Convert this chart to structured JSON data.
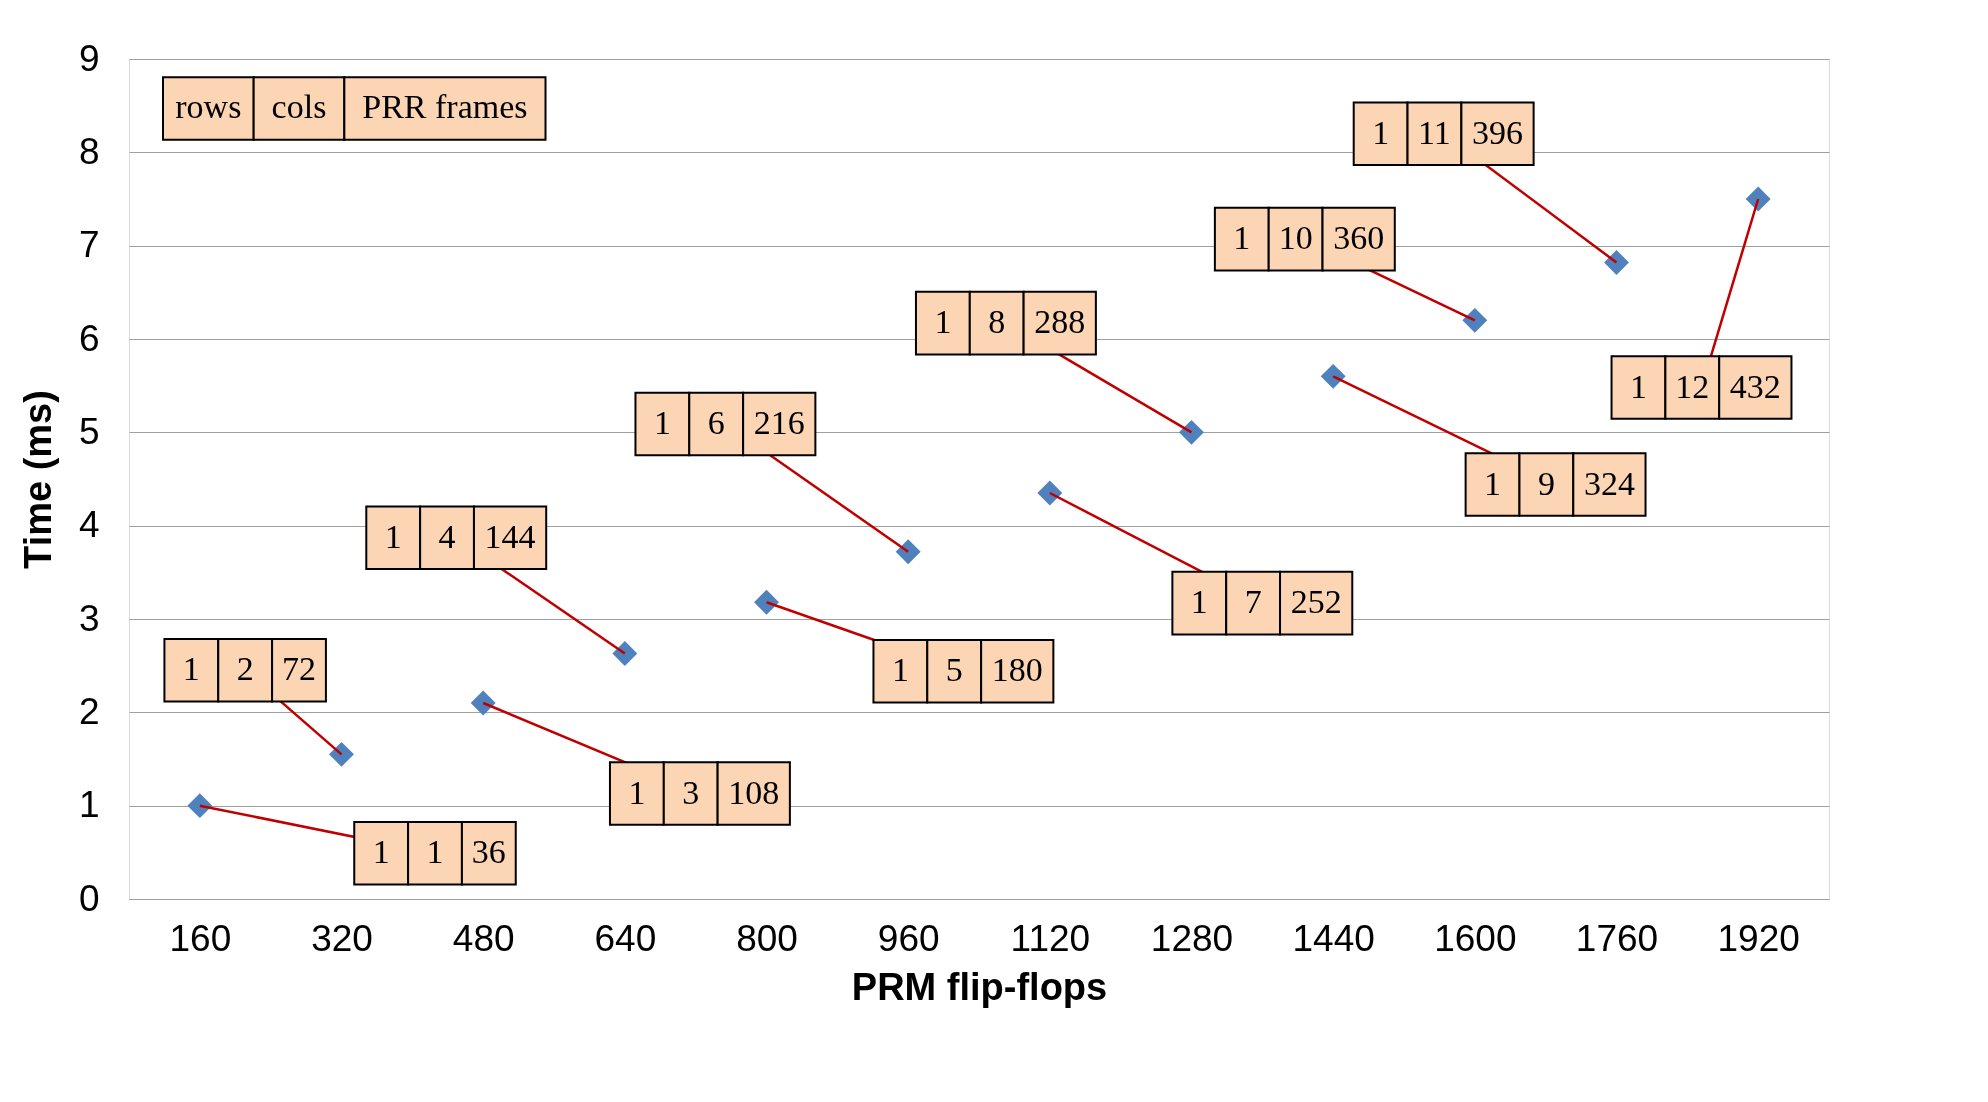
{
  "chart_data": {
    "type": "scatter",
    "xlabel": "PRM flip-flops",
    "ylabel": "Time (ms)",
    "categories": [
      "160",
      "320",
      "480",
      "640",
      "800",
      "960",
      "1120",
      "1280",
      "1440",
      "1600",
      "1760",
      "1920"
    ],
    "series": [
      {
        "color": "#4f81bd",
        "values": [
          1.0,
          1.55,
          2.1,
          2.63,
          3.18,
          3.72,
          4.35,
          5.0,
          5.6,
          6.2,
          6.82,
          7.5
        ]
      }
    ],
    "ylim": [
      0,
      9
    ],
    "yticks": [
      0,
      1,
      2,
      3,
      4,
      5,
      6,
      7,
      8,
      9
    ],
    "grid": "y",
    "legend": false,
    "marker": "diamond",
    "annotations": [
      "rows",
      "cols",
      "PRR frames",
      {
        "text": "1 1 36",
        "x": "160",
        "y": 1.0
      },
      {
        "text": "1 2 72",
        "x": "320",
        "y": 1.55
      },
      {
        "text": "1 3 108",
        "x": "480",
        "y": 2.1
      },
      {
        "text": "1 4 144",
        "x": "640",
        "y": 2.63
      },
      {
        "text": "1 5 180",
        "x": "800",
        "y": 3.18
      },
      {
        "text": "1 6 216",
        "x": "960",
        "y": 3.72
      },
      {
        "text": "1 7 252",
        "x": "1120",
        "y": 4.35
      },
      {
        "text": "1 8 288",
        "x": "1280",
        "y": 5.0
      },
      {
        "text": "1 9 324",
        "x": "1440",
        "y": 5.6
      },
      {
        "text": "1 10 360",
        "x": "1600",
        "y": 6.2
      },
      {
        "text": "1 11 396",
        "x": "1760",
        "y": 6.82
      },
      {
        "text": "1 12 432",
        "x": "1920",
        "y": 7.5
      }
    ]
  }
}
